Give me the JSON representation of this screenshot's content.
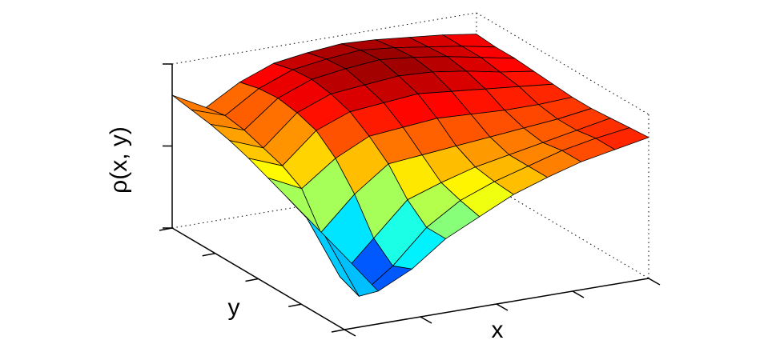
{
  "chart_data": {
    "type": "surface",
    "xlabel": "x",
    "ylabel": "y",
    "zlabel": "ρ(x, y)",
    "colormap": "jet",
    "xlim": [
      0,
      1
    ],
    "ylim": [
      0,
      1
    ],
    "zlim": [
      0,
      1
    ],
    "xticks": [
      0,
      0.25,
      0.5,
      0.75,
      1
    ],
    "yticks": [
      0,
      0.25,
      0.5,
      0.75,
      1
    ],
    "zticks": [
      0,
      0.5,
      1
    ],
    "x": [
      0,
      0.111,
      0.222,
      0.333,
      0.444,
      0.556,
      0.667,
      0.778,
      0.889,
      1
    ],
    "y": [
      0,
      0.111,
      0.222,
      0.333,
      0.444,
      0.556,
      0.667,
      0.778,
      0.889,
      1
    ],
    "z": [
      [
        0.45,
        0.2,
        0.3,
        0.45,
        0.55,
        0.65,
        0.72,
        0.78,
        0.82,
        0.86
      ],
      [
        0.5,
        0.1,
        0.25,
        0.45,
        0.58,
        0.66,
        0.72,
        0.78,
        0.82,
        0.85
      ],
      [
        0.55,
        0.15,
        0.35,
        0.55,
        0.62,
        0.68,
        0.72,
        0.76,
        0.8,
        0.84
      ],
      [
        0.6,
        0.35,
        0.55,
        0.7,
        0.72,
        0.74,
        0.76,
        0.78,
        0.8,
        0.83
      ],
      [
        0.65,
        0.55,
        0.7,
        0.8,
        0.82,
        0.84,
        0.83,
        0.82,
        0.82,
        0.83
      ],
      [
        0.7,
        0.62,
        0.8,
        0.88,
        0.9,
        0.92,
        0.9,
        0.88,
        0.86,
        0.84
      ],
      [
        0.74,
        0.66,
        0.84,
        0.92,
        0.94,
        0.96,
        0.95,
        0.92,
        0.88,
        0.85
      ],
      [
        0.77,
        0.7,
        0.86,
        0.94,
        0.97,
        0.99,
        0.97,
        0.94,
        0.9,
        0.86
      ],
      [
        0.79,
        0.72,
        0.85,
        0.93,
        0.96,
        0.98,
        0.96,
        0.93,
        0.9,
        0.86
      ],
      [
        0.81,
        0.7,
        0.82,
        0.9,
        0.93,
        0.95,
        0.94,
        0.92,
        0.9,
        0.87
      ]
    ]
  }
}
